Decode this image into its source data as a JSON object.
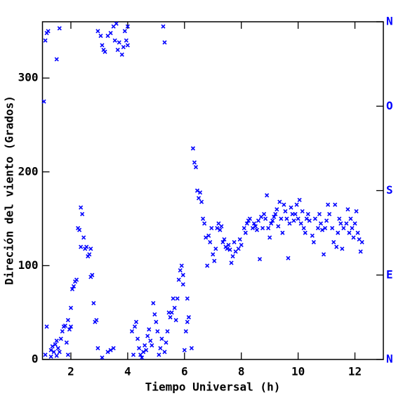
{
  "chart_data": {
    "type": "scatter",
    "x_label": "Tiempo Universal (h)",
    "y_label": "Direción del viento (Grados)",
    "color": "#0000ff",
    "y2_color": "#0000ff",
    "xlim": [
      1,
      13
    ],
    "xticks": [
      2,
      4,
      6,
      8,
      10,
      12
    ],
    "ylim": [
      0,
      360
    ],
    "yticks": [
      0,
      100,
      200,
      300
    ],
    "y2lim": [
      0,
      360
    ],
    "y2ticks": [
      {
        "value": 0,
        "label": "N"
      },
      {
        "value": 90,
        "label": "E"
      },
      {
        "value": 180,
        "label": "S"
      },
      {
        "value": 270,
        "label": "O"
      },
      {
        "value": 360,
        "label": "N"
      }
    ],
    "x": [
      1.05,
      1.1,
      1.15,
      1.2,
      1.15,
      1.1,
      1.3,
      1.3,
      1.35,
      1.4,
      1.45,
      1.5,
      1.5,
      1.55,
      1.6,
      1.65,
      1.5,
      1.6,
      1.7,
      1.75,
      1.8,
      1.85,
      1.9,
      1.95,
      2.0,
      1.9,
      2.0,
      2.05,
      2.1,
      2.15,
      2.2,
      2.25,
      2.3,
      2.35,
      2.4,
      2.35,
      2.45,
      2.5,
      2.55,
      2.6,
      2.65,
      2.7,
      2.7,
      2.75,
      2.8,
      2.85,
      2.9,
      2.95,
      3.1,
      2.95,
      3.05,
      3.1,
      3.15,
      3.2,
      3.3,
      3.3,
      3.4,
      3.5,
      3.4,
      3.5,
      3.55,
      3.6,
      3.65,
      3.7,
      3.8,
      3.85,
      3.9,
      3.95,
      4.0,
      4.0,
      4.15,
      4.2,
      4.25,
      4.3,
      4.35,
      4.4,
      4.45,
      4.5,
      4.55,
      4.6,
      4.65,
      4.7,
      4.75,
      4.8,
      4.85,
      4.9,
      4.95,
      5.0,
      5.05,
      5.1,
      5.15,
      5.2,
      5.25,
      5.3,
      5.3,
      5.35,
      5.4,
      5.45,
      5.5,
      5.55,
      5.6,
      5.65,
      5.7,
      5.75,
      5.8,
      5.85,
      5.9,
      5.95,
      5.95,
      6.0,
      6.05,
      6.1,
      6.1,
      6.15,
      6.25,
      6.3,
      6.35,
      6.4,
      6.45,
      6.5,
      6.55,
      6.6,
      6.65,
      6.7,
      6.75,
      6.8,
      6.85,
      6.9,
      6.95,
      7.0,
      7.05,
      7.1,
      7.15,
      7.2,
      7.25,
      7.3,
      7.35,
      7.4,
      7.45,
      7.5,
      7.55,
      7.6,
      7.65,
      7.7,
      7.75,
      7.8,
      7.9,
      7.95,
      8.0,
      8.1,
      8.15,
      8.2,
      8.25,
      8.3,
      8.4,
      8.45,
      8.5,
      8.55,
      8.6,
      8.65,
      8.7,
      8.75,
      8.8,
      8.85,
      8.9,
      8.95,
      9.0,
      9.05,
      9.1,
      9.15,
      9.2,
      9.25,
      9.3,
      9.35,
      9.4,
      9.45,
      9.5,
      9.55,
      9.6,
      9.65,
      9.7,
      9.75,
      9.8,
      9.85,
      9.9,
      9.95,
      10.0,
      10.05,
      10.1,
      10.15,
      10.2,
      10.25,
      10.3,
      10.35,
      10.4,
      10.5,
      10.55,
      10.6,
      10.7,
      10.75,
      10.8,
      10.85,
      10.9,
      10.95,
      11.0,
      11.05,
      11.1,
      11.2,
      11.25,
      11.3,
      11.35,
      11.4,
      11.45,
      11.5,
      11.55,
      11.6,
      11.7,
      11.75,
      11.8,
      11.85,
      11.9,
      11.95,
      12.0,
      12.05,
      12.1,
      12.15,
      12.2,
      12.25
    ],
    "values": [
      275,
      340,
      348,
      350,
      35,
      5,
      3,
      10,
      14,
      8,
      16,
      4,
      20,
      12,
      8,
      22,
      320,
      353,
      30,
      35,
      36,
      18,
      42,
      32,
      35,
      5,
      55,
      75,
      78,
      83,
      85,
      140,
      138,
      162,
      155,
      120,
      130,
      118,
      120,
      110,
      112,
      118,
      88,
      90,
      60,
      40,
      42,
      12,
      2,
      350,
      345,
      335,
      330,
      328,
      345,
      8,
      10,
      12,
      348,
      355,
      340,
      358,
      330,
      338,
      325,
      333,
      350,
      340,
      335,
      355,
      30,
      5,
      35,
      40,
      22,
      12,
      5,
      2,
      8,
      15,
      10,
      25,
      32,
      20,
      15,
      60,
      48,
      40,
      30,
      5,
      12,
      22,
      355,
      338,
      8,
      18,
      30,
      50,
      45,
      50,
      65,
      55,
      42,
      65,
      85,
      95,
      100,
      90,
      80,
      10,
      30,
      40,
      65,
      45,
      12,
      225,
      210,
      205,
      180,
      172,
      178,
      168,
      150,
      145,
      130,
      100,
      132,
      125,
      140,
      112,
      105,
      118,
      140,
      145,
      138,
      142,
      125,
      128,
      120,
      118,
      122,
      117,
      103,
      110,
      125,
      115,
      118,
      128,
      122,
      140,
      135,
      145,
      148,
      150,
      140,
      145,
      142,
      138,
      148,
      107,
      152,
      140,
      155,
      150,
      175,
      140,
      130,
      145,
      148,
      152,
      155,
      160,
      142,
      168,
      150,
      135,
      165,
      158,
      150,
      108,
      145,
      162,
      155,
      148,
      155,
      165,
      150,
      170,
      145,
      158,
      140,
      135,
      150,
      155,
      148,
      132,
      125,
      150,
      140,
      155,
      145,
      138,
      112,
      140,
      148,
      165,
      155,
      140,
      125,
      165,
      120,
      135,
      150,
      145,
      118,
      140,
      145,
      160,
      135,
      150,
      140,
      130,
      145,
      158,
      135,
      128,
      115,
      125
    ]
  }
}
